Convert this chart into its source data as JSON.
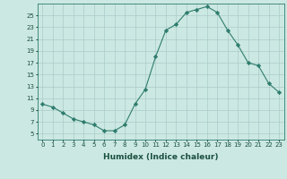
{
  "x": [
    0,
    1,
    2,
    3,
    4,
    5,
    6,
    7,
    8,
    9,
    10,
    11,
    12,
    13,
    14,
    15,
    16,
    17,
    18,
    19,
    20,
    21,
    22,
    23
  ],
  "y": [
    10,
    9.5,
    8.5,
    7.5,
    7,
    6.5,
    5.5,
    5.5,
    6.5,
    10,
    12.5,
    18,
    22.5,
    23.5,
    25.5,
    26,
    26.5,
    25.5,
    22.5,
    20,
    17,
    16.5,
    13.5,
    12
  ],
  "xlabel": "Humidex (Indice chaleur)",
  "xlim": [
    -0.5,
    23.5
  ],
  "ylim": [
    4,
    27
  ],
  "yticks": [
    5,
    7,
    9,
    11,
    13,
    15,
    17,
    19,
    21,
    23,
    25
  ],
  "xticks": [
    0,
    1,
    2,
    3,
    4,
    5,
    6,
    7,
    8,
    9,
    10,
    11,
    12,
    13,
    14,
    15,
    16,
    17,
    18,
    19,
    20,
    21,
    22,
    23
  ],
  "line_color": "#2e7d6e",
  "marker": "D",
  "marker_size": 2.2,
  "bg_color": "#cce8e2",
  "grid_color": "#aaccca",
  "tick_color": "#1a5040",
  "label_color": "#1a5040",
  "tick_fontsize": 5.0,
  "xlabel_fontsize": 6.5
}
